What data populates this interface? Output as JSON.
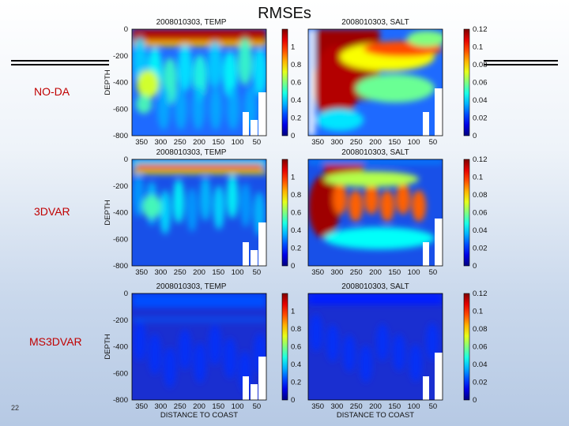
{
  "slide": {
    "title": "RMSEs",
    "page_number": "22",
    "row_labels": [
      "NO-DA",
      "3DVAR",
      "MS3DVAR"
    ]
  },
  "chart_data": {
    "type": "heatmap",
    "rows": [
      "NO-DA",
      "3DVAR",
      "MS3DVAR"
    ],
    "panels": [
      {
        "title": "2008010303, TEMP",
        "variable": "TEMP",
        "clim": [
          0,
          1.2
        ],
        "cbar_ticks": [
          "1",
          "0.8",
          "0.6",
          "0.4",
          "0.2",
          "0"
        ]
      },
      {
        "title": "2008010303, SALT",
        "variable": "SALT",
        "clim": [
          0,
          0.12
        ],
        "cbar_ticks": [
          "0.12",
          "0.1",
          "0.08",
          "0.06",
          "0.04",
          "0.02",
          "0"
        ]
      }
    ],
    "y_axis": {
      "label": "DEPTH",
      "range": [
        -800,
        0
      ],
      "ticks": [
        "0",
        "-200",
        "-400",
        "-600",
        "-800"
      ]
    },
    "x_axis": {
      "label": "DISTANCE TO COAST",
      "range": [
        375,
        25
      ],
      "ticks": [
        "350",
        "300",
        "250",
        "200",
        "150",
        "100",
        "50"
      ]
    }
  },
  "colors": {
    "title_red": "#c00000",
    "rule": "#000000"
  }
}
